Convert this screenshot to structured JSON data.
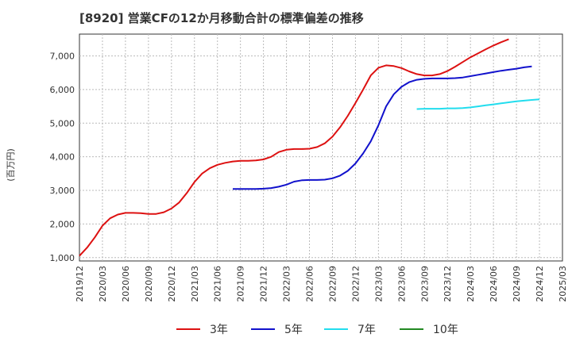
{
  "chart_data": {
    "type": "line",
    "title": "[8920]  営業CFの12か月移動合計の標準偏差の推移",
    "ylabel": "(百万円)",
    "xlabel": "",
    "ylim": [
      900,
      7650
    ],
    "yticks": [
      1000,
      2000,
      3000,
      4000,
      5000,
      6000,
      7000
    ],
    "ytick_labels": [
      "1,000",
      "2,000",
      "3,000",
      "4,000",
      "5,000",
      "6,000",
      "7,000"
    ],
    "xticks": [
      "2019/12",
      "2020/03",
      "2020/06",
      "2020/09",
      "2020/12",
      "2021/03",
      "2021/06",
      "2021/09",
      "2021/12",
      "2022/03",
      "2022/06",
      "2022/09",
      "2022/12",
      "2023/03",
      "2023/06",
      "2023/09",
      "2023/12",
      "2024/03",
      "2024/06",
      "2024/09",
      "2024/12",
      "2025/03"
    ],
    "x_start": "2019/12",
    "grid": true,
    "legend_position": "bottom",
    "series": [
      {
        "name": "3年",
        "color": "#dd1111",
        "start": "2019/12",
        "values": [
          1050,
          1300,
          1600,
          1950,
          2170,
          2280,
          2330,
          2330,
          2320,
          2300,
          2300,
          2350,
          2460,
          2640,
          2920,
          3250,
          3500,
          3660,
          3760,
          3820,
          3860,
          3880,
          3880,
          3890,
          3920,
          4000,
          4140,
          4210,
          4230,
          4230,
          4240,
          4290,
          4400,
          4600,
          4880,
          5220,
          5600,
          6000,
          6420,
          6650,
          6720,
          6700,
          6640,
          6540,
          6460,
          6420,
          6420,
          6460,
          6550,
          6680,
          6820,
          6960,
          7080,
          7200,
          7310,
          7410,
          7500
        ]
      },
      {
        "name": "5年",
        "color": "#1111cc",
        "start": "2021/08",
        "values": [
          3040,
          3040,
          3040,
          3040,
          3050,
          3070,
          3110,
          3170,
          3260,
          3300,
          3310,
          3310,
          3320,
          3360,
          3440,
          3580,
          3800,
          4100,
          4460,
          4940,
          5500,
          5860,
          6080,
          6220,
          6290,
          6320,
          6330,
          6330,
          6330,
          6340,
          6360,
          6400,
          6440,
          6480,
          6520,
          6560,
          6590,
          6620,
          6660,
          6690
        ]
      },
      {
        "name": "7年",
        "color": "#22ddee",
        "start": "2023/08",
        "values": [
          5420,
          5430,
          5430,
          5430,
          5440,
          5440,
          5450,
          5470,
          5500,
          5530,
          5560,
          5590,
          5620,
          5650,
          5670,
          5690,
          5710
        ]
      },
      {
        "name": "10年",
        "color": "#228822",
        "start": "",
        "values": []
      }
    ]
  }
}
